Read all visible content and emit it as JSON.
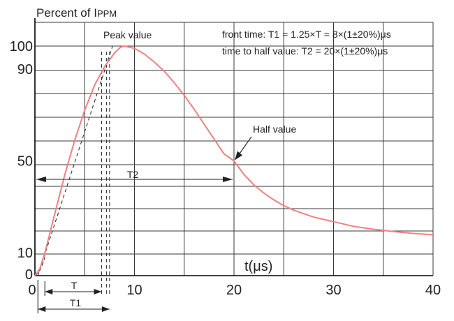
{
  "chart_data": {
    "type": "line",
    "title": "Percent of IPPM",
    "title_main": "Percent of I",
    "title_sub": "PPM",
    "xlabel": "t(μs)",
    "ylabel": "",
    "xlim": [
      0,
      40
    ],
    "ylim": [
      0,
      100
    ],
    "x_ticks": [
      0,
      10,
      20,
      30,
      40
    ],
    "y_ticks": [
      0,
      10,
      50,
      90,
      100
    ],
    "grid": true,
    "curve_color": "#f08080",
    "series": [
      {
        "x": [
          0,
          0.5,
          1,
          2,
          3,
          4,
          5,
          6,
          7,
          8,
          8.6,
          9,
          10,
          11,
          12,
          13,
          14,
          15,
          16,
          17,
          18,
          19,
          20,
          21,
          22,
          23,
          24,
          25,
          26,
          27,
          28,
          29,
          30,
          32,
          34,
          36,
          38,
          40
        ],
        "values": [
          0,
          3,
          10,
          27,
          44,
          59,
          72,
          83,
          91,
          97,
          99.5,
          100,
          99,
          96.5,
          93,
          89,
          84,
          78.5,
          72.5,
          66,
          59.5,
          53,
          50,
          44,
          39.5,
          36,
          33,
          30.5,
          28.5,
          27,
          25.5,
          24.5,
          23.5,
          21.5,
          20.2,
          19.2,
          18.4,
          17.8
        ]
      }
    ],
    "annotations": {
      "peak": "Peak value",
      "half": "Half value",
      "front_time": "front time: T1 = 1.25×T = 8×(1±20%)μs",
      "half_time": "time to half value: T2 = 20×(1±20%)μs",
      "T": "T",
      "T1": "T1",
      "T2": "T2"
    }
  }
}
